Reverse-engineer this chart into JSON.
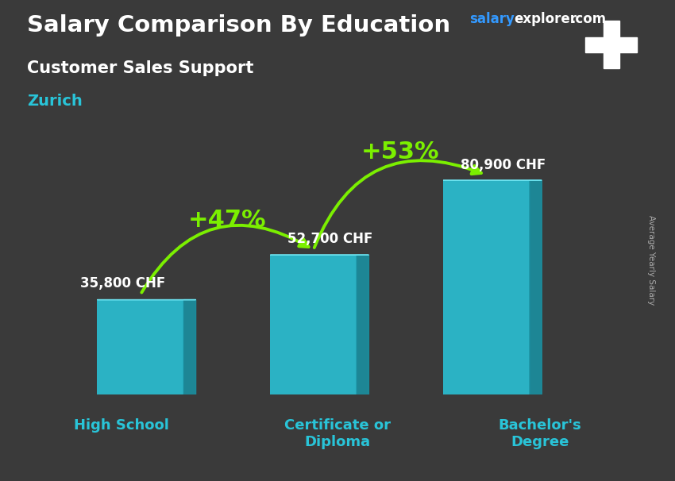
{
  "title": "Salary Comparison By Education",
  "subtitle": "Customer Sales Support",
  "location": "Zurich",
  "categories": [
    "High School",
    "Certificate or\nDiploma",
    "Bachelor's\nDegree"
  ],
  "values": [
    35800,
    52700,
    80900
  ],
  "value_labels": [
    "35,800 CHF",
    "52,700 CHF",
    "80,900 CHF"
  ],
  "pct_labels": [
    "+47%",
    "+53%"
  ],
  "bar_color": "#29C4D8",
  "bar_color_dark": "#1A8FA0",
  "bar_color_light": "#70E8F5",
  "title_color": "#FFFFFF",
  "subtitle_color": "#FFFFFF",
  "location_color": "#29C4D8",
  "value_color": "#FFFFFF",
  "pct_color": "#7BEF00",
  "arrow_color": "#7BEF00",
  "cat_color": "#29C4D8",
  "ylabel_text": "Average Yearly Salary",
  "brand_salary_color": "#3399FF",
  "brand_rest_color": "#FFFFFF",
  "figsize": [
    8.5,
    6.06
  ],
  "dpi": 100,
  "ylim_max": 100000,
  "bar_width": 0.5,
  "bg_color": "#3a3a3a"
}
